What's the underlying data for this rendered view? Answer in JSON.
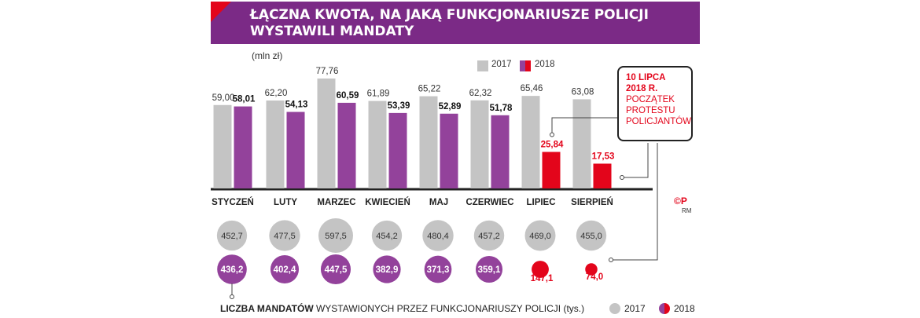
{
  "title": "ŁĄCZNA KWOTA, NA JAKĄ FUNKCJONARIUSZE POLICJI WYSTAWILI MANDATY",
  "unit_label": "(mln zł)",
  "legend_top": {
    "y2017": "2017",
    "y2018": "2018"
  },
  "callout": {
    "date": "10 LIPCA",
    "year": "2018 R.",
    "text": "POCZĄTEK\nPROTESTU\nPOLICJANTÓW"
  },
  "copyright": "©P",
  "copyright_sub": "RM",
  "bottom": {
    "label_bold": "LICZBA MANDATÓW",
    "label_rest": " WYSTAWIONYCH PRZEZ FUNKCJONARIUSZY POLICJI  (tys.)",
    "legend_2017": "2017",
    "legend_2018": "2018"
  },
  "colors": {
    "gray": "#c4c4c4",
    "purple": "#93429b",
    "red": "#e3051b",
    "banner": "#7b2a86"
  },
  "chart_data": [
    {
      "type": "bar",
      "title": "ŁĄCZNA KWOTA, NA JAKĄ FUNKCJONARIUSZE POLICJI WYSTAWILI MANDATY",
      "ylabel": "(mln zł)",
      "categories": [
        "STYCZEŃ",
        "LUTY",
        "MARZEC",
        "KWIECIEŃ",
        "MAJ",
        "CZERWIEC",
        "LIPIEC",
        "SIERPIEŃ"
      ],
      "series": [
        {
          "name": "2017",
          "values": [
            59.0,
            62.2,
            77.76,
            61.89,
            65.22,
            62.32,
            65.46,
            63.08
          ],
          "labels": [
            "59,00",
            "62,20",
            "77,76",
            "61,89",
            "65,22",
            "62,32",
            "65,46",
            "63,08"
          ]
        },
        {
          "name": "2018",
          "values": [
            58.01,
            54.13,
            60.59,
            53.39,
            52.89,
            51.78,
            25.84,
            17.53
          ],
          "labels": [
            "58,01",
            "54,13",
            "60,59",
            "53,39",
            "52,89",
            "51,78",
            "25,84",
            "17,53"
          ]
        }
      ],
      "highlight_2018_from_index": 6,
      "ylim": [
        0,
        80
      ]
    },
    {
      "type": "bubble",
      "title": "LICZBA MANDATÓW WYSTAWIONYCH PRZEZ FUNKCJONARIUSZY POLICJI (tys.)",
      "categories": [
        "STYCZEŃ",
        "LUTY",
        "MARZEC",
        "KWIECIEŃ",
        "MAJ",
        "CZERWIEC",
        "LIPIEC",
        "SIERPIEŃ"
      ],
      "series": [
        {
          "name": "2017",
          "values": [
            452.7,
            477.5,
            597.5,
            454.2,
            480.4,
            457.2,
            469.0,
            455.0
          ],
          "labels": [
            "452,7",
            "477,5",
            "597,5",
            "454,2",
            "480,4",
            "457,2",
            "469,0",
            "455,0"
          ]
        },
        {
          "name": "2018",
          "values": [
            436.2,
            402.4,
            447.5,
            382.9,
            371.3,
            359.1,
            147.1,
            74.0
          ],
          "labels": [
            "436,2",
            "402,4",
            "447,5",
            "382,9",
            "371,3",
            "359,1",
            "147,1",
            "74,0"
          ]
        }
      ]
    }
  ]
}
